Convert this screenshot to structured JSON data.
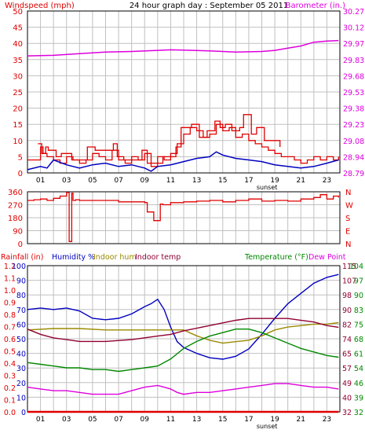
{
  "colors": {
    "red": "#e00000",
    "blue": "#0000c0",
    "magenta": "#dd00dd",
    "olive": "#9a8a00",
    "maroon": "#900030",
    "green": "#008800",
    "darkmagenta": "#aa00aa",
    "grid": "#c0c0c0",
    "black": "#000000"
  },
  "header": {
    "wind_title": "Windspeed (mph)",
    "main_title": "24 hour graph day : September 05 2011",
    "baro_title": "Barometer (in.)"
  },
  "hour_labels": [
    "01",
    "03",
    "05",
    "07",
    "09",
    "11",
    "13",
    "15",
    "17",
    "19",
    "21",
    "23"
  ],
  "sunset_label": "sunset",
  "bottom_legend": {
    "rain": "Rainfall (in)",
    "humidity": "Humidity %",
    "indoor_hum": "Indoor hum",
    "indoor_temp": "Indoor temp",
    "temperature": "Temperature (°F)",
    "dew_point": "Dew Point"
  },
  "chart_data": [
    {
      "type": "line",
      "title": "24 hour graph day : September 05 2011",
      "xlabel": "",
      "x_range": [
        0,
        24
      ],
      "ylabel": "Windspeed (mph)",
      "ylim": [
        0,
        50
      ],
      "y_ticks": [
        "50",
        "45",
        "40",
        "35",
        "30",
        "25",
        "20",
        "15",
        "10",
        "5",
        "0"
      ],
      "ylabel_right": "Barometer (in.)",
      "ylim_right": [
        28.79,
        30.27
      ],
      "y_ticks_right": [
        "30.27",
        "30.12",
        "29.97",
        "29.83",
        "29.68",
        "29.53",
        "29.38",
        "29.23",
        "29.08",
        "28.94",
        "28.79"
      ],
      "grid": true,
      "series": [
        {
          "name": "Windspeed (mph)",
          "axis": "left",
          "color": "#e00000",
          "step": true,
          "x": [
            0,
            0.5,
            1,
            1.2,
            1.5,
            2,
            2.5,
            3,
            3.5,
            4,
            4.5,
            5,
            5.5,
            6,
            6.5,
            7,
            7.5,
            8,
            8.5,
            9,
            9.5,
            10,
            10.5,
            11,
            11.5,
            12,
            12.5,
            13,
            13.5,
            14,
            14.5,
            15,
            15.5,
            16,
            16.5,
            17,
            17.5,
            18,
            18.5,
            19,
            19.5,
            20,
            20.5,
            21,
            21.5,
            22,
            22.5,
            23,
            23.5,
            23.9
          ],
          "y": [
            4,
            4,
            8,
            6,
            5,
            4,
            3,
            5,
            4,
            3,
            4,
            6,
            5,
            4,
            7,
            4,
            3,
            5,
            4,
            6,
            2,
            5,
            4,
            6,
            9,
            12,
            14,
            13,
            11,
            12,
            15,
            13,
            14,
            11,
            12,
            10,
            9,
            8,
            7,
            6,
            5,
            5,
            4,
            3,
            4,
            5,
            4,
            5,
            4,
            5
          ]
        },
        {
          "name": "Wind gust",
          "axis": "left",
          "color": "#e00000",
          "step": true,
          "x": [
            0.8,
            1.1,
            1.4,
            1.6,
            2.2,
            2.6,
            3.4,
            4.6,
            5.2,
            6.6,
            6.9,
            7.4,
            8.8,
            9.2,
            10.4,
            11.4,
            11.8,
            12.6,
            13.2,
            13.8,
            14.4,
            14.8,
            15.2,
            15.7,
            16.3,
            16.6,
            17.2,
            17.6,
            18.2,
            19.4
          ],
          "y": [
            9,
            6,
            8,
            7,
            5,
            6,
            4,
            8,
            7,
            9,
            5,
            4,
            7,
            3,
            5,
            8,
            14,
            15,
            11,
            13,
            16,
            14,
            15,
            13,
            14,
            18,
            12,
            14,
            10,
            8
          ]
        },
        {
          "name": "Average windspeed",
          "axis": "left",
          "color": "#0000c0",
          "x": [
            0,
            1,
            1.5,
            2,
            3,
            4,
            5,
            6,
            7,
            8,
            9,
            9.5,
            10,
            11,
            12,
            13,
            14,
            14.5,
            15,
            16,
            17,
            18,
            19,
            20,
            21,
            22,
            23,
            23.9
          ],
          "y": [
            1,
            2,
            1.5,
            4,
            2.5,
            1.5,
            2.5,
            3,
            2,
            2.5,
            1.5,
            0.5,
            2,
            2.5,
            3.5,
            4.5,
            5,
            6.5,
            5.5,
            4.5,
            4,
            3.5,
            2.5,
            2,
            1.5,
            2,
            3,
            4
          ]
        },
        {
          "name": "Barometer (in.)",
          "axis": "right",
          "color": "#dd00dd",
          "x": [
            0,
            2,
            4,
            6,
            8,
            10,
            11,
            12,
            14,
            15,
            16,
            18,
            19,
            20,
            21,
            22,
            23,
            23.9
          ],
          "y": [
            29.86,
            29.865,
            29.88,
            29.895,
            29.9,
            29.91,
            29.915,
            29.912,
            29.905,
            29.9,
            29.895,
            29.9,
            29.91,
            29.93,
            29.95,
            29.985,
            29.995,
            30.0
          ]
        }
      ]
    },
    {
      "type": "line",
      "title": "",
      "x_range": [
        0,
        24
      ],
      "ylim": [
        0,
        360
      ],
      "y_ticks": [
        "360",
        "270",
        "180",
        "90",
        "0"
      ],
      "y_ticks_right": [
        "N",
        "W",
        "S",
        "E",
        "N"
      ],
      "grid": true,
      "series": [
        {
          "name": "Wind direction",
          "color": "#e00000",
          "step": true,
          "x": [
            0,
            0.5,
            1,
            1.5,
            2,
            2.5,
            3,
            3.2,
            3.4,
            3.5,
            3.7,
            4,
            5,
            6,
            7,
            8,
            9,
            9.2,
            9.7,
            10.2,
            10.4,
            11,
            12,
            13,
            14,
            15,
            16,
            17,
            18,
            19,
            20,
            21,
            22,
            22.5,
            23,
            23.5,
            23.9
          ],
          "y": [
            300,
            305,
            310,
            300,
            315,
            330,
            355,
            15,
            350,
            300,
            305,
            300,
            300,
            300,
            290,
            290,
            285,
            220,
            160,
            275,
            270,
            285,
            290,
            295,
            300,
            290,
            300,
            310,
            295,
            300,
            295,
            310,
            320,
            340,
            310,
            330,
            320
          ]
        }
      ]
    },
    {
      "type": "line",
      "title": "",
      "x_range": [
        0,
        24
      ],
      "ylabel": "Rainfall (in)",
      "ylim": [
        0,
        1.2
      ],
      "y_ticks": [
        "1.2",
        "1.1",
        "1.0",
        "0.9",
        "0.8",
        "0.7",
        "0.6",
        "0.5",
        "0.4",
        "0.3",
        "0.2",
        "0.1",
        "0.0"
      ],
      "ylabel2": "Humidity %",
      "ylim2": [
        0,
        100
      ],
      "y_ticks2": [
        "100",
        "90",
        "80",
        "70",
        "60",
        "50",
        "40",
        "30",
        "20",
        "10",
        "0"
      ],
      "ylabel_right": "Temperature (°F)",
      "y_ticks_right": [
        "115",
        "107",
        "98",
        "90",
        "82",
        "74",
        "65",
        "57",
        "49",
        "40",
        "32"
      ],
      "ylim_right": [
        32,
        115
      ],
      "y_ticks_right_outer": [
        "104",
        "97",
        "90",
        "83",
        "75",
        "68",
        "61",
        "54",
        "46",
        "39",
        "32"
      ],
      "ylim_right_outer": [
        32,
        104
      ],
      "grid": true,
      "series": [
        {
          "name": "Humidity %",
          "axis": "humidity",
          "color": "#0000c0",
          "x": [
            0,
            1,
            2,
            3,
            4,
            5,
            6,
            7,
            8,
            9,
            9.5,
            10,
            10.5,
            11,
            11.5,
            12,
            13,
            14,
            15,
            16,
            17,
            18,
            19,
            20,
            21,
            22,
            23,
            23.9
          ],
          "y": [
            70,
            71,
            70,
            71,
            69,
            64,
            63,
            64,
            67,
            72,
            74,
            77,
            70,
            58,
            48,
            44,
            40,
            37,
            36,
            38,
            43,
            53,
            64,
            74,
            81,
            88,
            92,
            94
          ]
        },
        {
          "name": "Indoor hum",
          "axis": "humidity",
          "color": "#9a8a00",
          "x": [
            0,
            2,
            4,
            6,
            8,
            10,
            11,
            12,
            13,
            14,
            15,
            16,
            17,
            18,
            19,
            20,
            21,
            22,
            23,
            23.9
          ],
          "y": [
            56,
            57,
            57,
            56,
            56,
            56,
            56,
            56,
            52,
            49,
            47,
            48,
            49,
            52,
            56,
            58,
            59,
            60,
            60,
            61
          ]
        },
        {
          "name": "Indoor temp",
          "axis": "temp",
          "color": "#900030",
          "x": [
            0,
            1,
            2,
            3,
            4,
            6,
            8,
            10,
            11,
            12,
            14,
            16,
            17,
            18,
            20,
            22,
            23,
            23.9
          ],
          "y": [
            79,
            76,
            74,
            73,
            72,
            72,
            73,
            75,
            76,
            78,
            81,
            84,
            85,
            85,
            85,
            83,
            81,
            80
          ]
        },
        {
          "name": "Temperature (°F)",
          "axis": "temp",
          "color": "#008800",
          "x": [
            0,
            1,
            2,
            3,
            4,
            5,
            6,
            7,
            8,
            9,
            10,
            11,
            12,
            13,
            14,
            15,
            16,
            17,
            18,
            19,
            20,
            21,
            22,
            23,
            23.9
          ],
          "y": [
            60,
            59,
            58,
            57,
            57,
            56,
            56,
            55,
            56,
            57,
            58,
            62,
            68,
            72,
            75,
            77,
            79,
            79,
            77,
            74,
            71,
            68,
            66,
            64,
            63
          ]
        },
        {
          "name": "Dew Point",
          "axis": "temp",
          "color": "#dd00dd",
          "x": [
            0,
            1,
            2,
            3,
            4,
            5,
            6,
            7,
            8,
            9,
            10,
            10.5,
            11,
            11.5,
            12,
            13,
            14,
            15,
            16,
            17,
            18,
            19,
            20,
            21,
            22,
            23,
            23.9
          ],
          "y": [
            46,
            45,
            44,
            44,
            43,
            42,
            42,
            42,
            44,
            46,
            47,
            46,
            45,
            43,
            42,
            43,
            43,
            44,
            45,
            46,
            47,
            48,
            48,
            47,
            46,
            46,
            45
          ]
        },
        {
          "name": "Rainfall (in)",
          "axis": "rain",
          "color": "#e00000",
          "x": [
            0,
            23.9
          ],
          "y": [
            0,
            0
          ]
        }
      ]
    }
  ]
}
